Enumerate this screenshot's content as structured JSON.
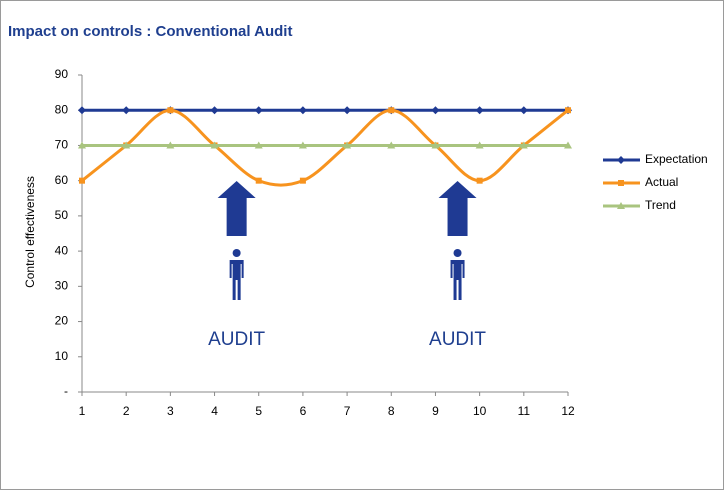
{
  "chart_data": {
    "type": "line",
    "title": "Impact on controls : Conventional Audit",
    "y_label": "Control effectiveness",
    "x": [
      1,
      2,
      3,
      4,
      5,
      6,
      7,
      8,
      9,
      10,
      11,
      12
    ],
    "xlim": [
      1,
      12
    ],
    "xticks": [
      1,
      2,
      3,
      4,
      5,
      6,
      7,
      8,
      9,
      10,
      11,
      12
    ],
    "ylim": [
      0,
      90
    ],
    "yticks": [
      {
        "value": 0,
        "label": "-"
      },
      10,
      20,
      30,
      40,
      50,
      60,
      70,
      80,
      90
    ],
    "legend": "right",
    "series": [
      {
        "name": "Expectation",
        "color": "#1f3a93",
        "marker": "diamond",
        "values": [
          80,
          80,
          80,
          80,
          80,
          80,
          80,
          80,
          80,
          80,
          80,
          80
        ]
      },
      {
        "name": "Actual",
        "color": "#f7931e",
        "marker": "square",
        "smooth": true,
        "values": [
          60,
          70,
          80,
          70,
          60,
          60,
          70,
          80,
          70,
          60,
          70,
          80
        ]
      },
      {
        "name": "Trend",
        "color": "#a9c47f",
        "marker": "triangle",
        "values": [
          70,
          70,
          70,
          70,
          70,
          70,
          70,
          70,
          70,
          70,
          70,
          70
        ]
      }
    ],
    "annotations": [
      "AUDIT",
      "AUDIT"
    ]
  }
}
